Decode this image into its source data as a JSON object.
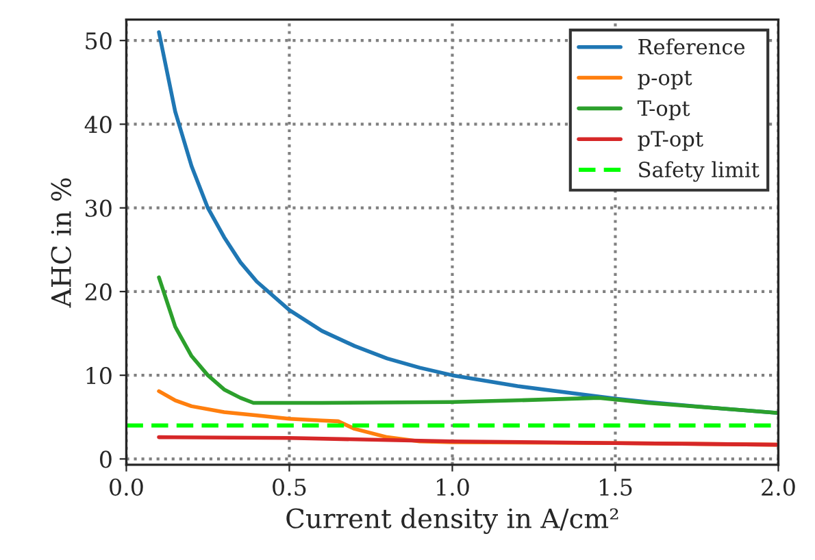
{
  "chart_data": {
    "type": "line",
    "xlabel": "Current density in A/cm²",
    "ylabel": "AHC in %",
    "xlim": [
      0,
      2
    ],
    "xticks": [
      {
        "value": 0,
        "label": "0.0"
      },
      {
        "value": 0.5,
        "label": "0.5"
      },
      {
        "value": 1,
        "label": "1.0"
      },
      {
        "value": 1.5,
        "label": "1.5"
      },
      {
        "value": 2,
        "label": "2.0"
      }
    ],
    "ylim": [
      -0.7,
      52.5
    ],
    "yticks": [
      0,
      10,
      20,
      30,
      40,
      50
    ],
    "grid": true,
    "legend": "top right",
    "line_style": "solid",
    "marker": "none",
    "series": [
      {
        "name": "Reference",
        "color": "#1f77b4",
        "x": [
          0.1,
          0.15,
          0.2,
          0.25,
          0.3,
          0.35,
          0.4,
          0.5,
          0.6,
          0.7,
          0.8,
          0.9,
          1.0,
          1.2,
          1.4,
          1.5,
          1.6,
          1.8,
          2.0
        ],
        "values": [
          51,
          41.5,
          35,
          30,
          26.5,
          23.5,
          21.2,
          17.8,
          15.3,
          13.5,
          12,
          10.9,
          10,
          8.7,
          7.7,
          7.2,
          6.8,
          6.1,
          5.5
        ]
      },
      {
        "name": "p-opt",
        "color": "#ff7f0e",
        "x": [
          0.1,
          0.15,
          0.2,
          0.3,
          0.4,
          0.5,
          0.6,
          0.65,
          0.7,
          0.8,
          0.9,
          1.0,
          1.5,
          2.0
        ],
        "values": [
          8.1,
          7,
          6.3,
          5.6,
          5.2,
          4.8,
          4.6,
          4.5,
          3.6,
          2.6,
          2.1,
          2.0,
          1.9,
          1.7
        ]
      },
      {
        "name": "T-opt",
        "color": "#2ca02c",
        "x": [
          0.1,
          0.15,
          0.2,
          0.25,
          0.3,
          0.35,
          0.39,
          0.6,
          1.0,
          1.2,
          1.45,
          1.6,
          1.8,
          2.0
        ],
        "values": [
          21.7,
          15.8,
          12.3,
          10,
          8.3,
          7.3,
          6.7,
          6.7,
          6.8,
          7.0,
          7.3,
          6.7,
          6.1,
          5.5
        ]
      },
      {
        "name": "pT-opt",
        "color": "#d62728",
        "x": [
          0.1,
          0.5,
          1.0,
          1.5,
          2.0
        ],
        "values": [
          2.6,
          2.5,
          2.1,
          1.9,
          1.7
        ]
      }
    ],
    "ref_lines": [
      {
        "axis": "y",
        "value": 4,
        "label": "Safety limit",
        "color": "#00ff00",
        "line_style": "dashed"
      }
    ]
  }
}
